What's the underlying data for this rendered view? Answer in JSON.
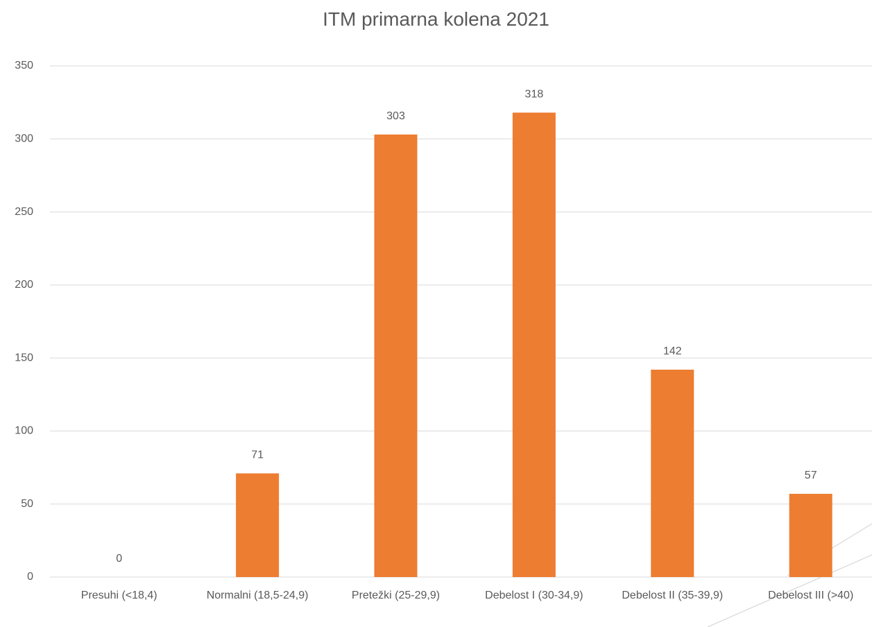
{
  "chart_data": {
    "type": "bar",
    "title": "ITM primarna kolena 2021",
    "categories": [
      "Presuhi (<18,4)",
      "Normalni (18,5-24,9)",
      "Pretežki (25-29,9)",
      "Debelost I (30-34,9)",
      "Debelost II (35-39,9)",
      "Debelost III (>40)"
    ],
    "values": [
      0,
      71,
      303,
      318,
      142,
      57
    ],
    "color": "#ed7d31",
    "ylim": [
      0,
      350
    ],
    "yticks": [
      0,
      50,
      100,
      150,
      200,
      250,
      300,
      350
    ],
    "grid": true
  }
}
